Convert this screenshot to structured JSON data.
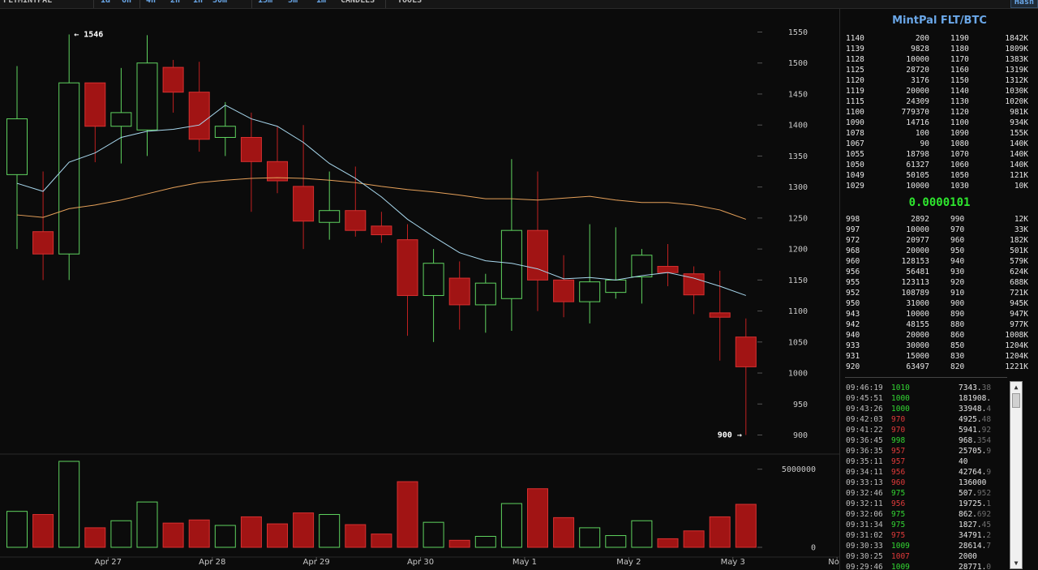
{
  "topbar": {
    "items": [
      {
        "label": "FLTMINTPAL",
        "blue": false
      },
      {
        "label": "1d",
        "blue": true
      },
      {
        "label": "6h",
        "blue": true
      },
      {
        "label": "4h",
        "blue": true
      },
      {
        "label": "2h",
        "blue": true
      },
      {
        "label": "1h",
        "blue": true
      },
      {
        "label": "30m",
        "blue": true
      },
      {
        "label": "15m",
        "blue": true
      },
      {
        "label": "5m",
        "blue": true
      },
      {
        "label": "1m",
        "blue": true
      },
      {
        "label": "CANDLES",
        "blue": false
      },
      {
        "label": "TOOLS",
        "blue": false
      }
    ],
    "hash_label": "Hash"
  },
  "chart_data": {
    "type": "candlestick",
    "price_axis": {
      "min": 900,
      "max": 1550,
      "ticks": [
        1550,
        1500,
        1450,
        1400,
        1350,
        1300,
        1250,
        1200,
        1150,
        1100,
        1050,
        1000,
        950,
        900
      ]
    },
    "volume_axis": {
      "ticks": [
        0,
        5000000
      ],
      "tick_labels": [
        "0",
        "5000000"
      ]
    },
    "x_labels": [
      {
        "label": "Apr 27",
        "at": 3.5
      },
      {
        "label": "Apr 28",
        "at": 7.5
      },
      {
        "label": "Apr 29",
        "at": 11.5
      },
      {
        "label": "Apr 30",
        "at": 15.5
      },
      {
        "label": "May 1",
        "at": 19.5
      },
      {
        "label": "May 2",
        "at": 23.5
      },
      {
        "label": "May 3",
        "at": 27.5
      },
      {
        "label": "Now",
        "at": 31.5
      }
    ],
    "annotations": {
      "high": "← 1546",
      "low": "900 →",
      "high_index": 2,
      "low_index": 28
    },
    "candles": [
      {
        "o": 1320,
        "h": 1495,
        "l": 1200,
        "c": 1410,
        "v": 2300000
      },
      {
        "o": 1228,
        "h": 1325,
        "l": 1150,
        "c": 1192,
        "v": 2100000
      },
      {
        "o": 1192,
        "h": 1546,
        "l": 1150,
        "c": 1468,
        "v": 5500000
      },
      {
        "o": 1468,
        "h": 1468,
        "l": 1340,
        "c": 1398,
        "v": 1250000
      },
      {
        "o": 1398,
        "h": 1492,
        "l": 1338,
        "c": 1420,
        "v": 1700000
      },
      {
        "o": 1392,
        "h": 1545,
        "l": 1350,
        "c": 1500,
        "v": 2900000
      },
      {
        "o": 1493,
        "h": 1505,
        "l": 1420,
        "c": 1453,
        "v": 1550000
      },
      {
        "o": 1453,
        "h": 1502,
        "l": 1357,
        "c": 1377,
        "v": 1750000
      },
      {
        "o": 1380,
        "h": 1437,
        "l": 1350,
        "c": 1398,
        "v": 1400000
      },
      {
        "o": 1380,
        "h": 1420,
        "l": 1260,
        "c": 1341,
        "v": 1950000
      },
      {
        "o": 1341,
        "h": 1397,
        "l": 1290,
        "c": 1310,
        "v": 1500000
      },
      {
        "o": 1301,
        "h": 1400,
        "l": 1200,
        "c": 1245,
        "v": 2200000
      },
      {
        "o": 1243,
        "h": 1325,
        "l": 1215,
        "c": 1262,
        "v": 2100000
      },
      {
        "o": 1262,
        "h": 1333,
        "l": 1220,
        "c": 1230,
        "v": 1450000
      },
      {
        "o": 1237,
        "h": 1260,
        "l": 1210,
        "c": 1223,
        "v": 850000
      },
      {
        "o": 1215,
        "h": 1240,
        "l": 1060,
        "c": 1125,
        "v": 4200000
      },
      {
        "o": 1125,
        "h": 1200,
        "l": 1050,
        "c": 1177,
        "v": 1600000
      },
      {
        "o": 1153,
        "h": 1180,
        "l": 1070,
        "c": 1110,
        "v": 450000
      },
      {
        "o": 1110,
        "h": 1160,
        "l": 1065,
        "c": 1145,
        "v": 700000
      },
      {
        "o": 1120,
        "h": 1345,
        "l": 1068,
        "c": 1230,
        "v": 2800000
      },
      {
        "o": 1230,
        "h": 1325,
        "l": 1100,
        "c": 1150,
        "v": 3750000
      },
      {
        "o": 1150,
        "h": 1190,
        "l": 1090,
        "c": 1115,
        "v": 1900000
      },
      {
        "o": 1115,
        "h": 1240,
        "l": 1080,
        "c": 1147,
        "v": 1250000
      },
      {
        "o": 1130,
        "h": 1235,
        "l": 1120,
        "c": 1150,
        "v": 750000
      },
      {
        "o": 1155,
        "h": 1200,
        "l": 1112,
        "c": 1190,
        "v": 1700000
      },
      {
        "o": 1172,
        "h": 1208,
        "l": 1140,
        "c": 1162,
        "v": 550000
      },
      {
        "o": 1160,
        "h": 1172,
        "l": 1095,
        "c": 1126,
        "v": 1050000
      },
      {
        "o": 1097,
        "h": 1165,
        "l": 1020,
        "c": 1090,
        "v": 1950000
      },
      {
        "o": 1058,
        "h": 1088,
        "l": 900,
        "c": 1010,
        "v": 2750000
      }
    ],
    "ma_short": [
      1306,
      1293,
      1340,
      1355,
      1380,
      1390,
      1393,
      1400,
      1432,
      1410,
      1398,
      1372,
      1338,
      1314,
      1284,
      1248,
      1220,
      1194,
      1181,
      1177,
      1168,
      1152,
      1154,
      1150,
      1157,
      1162,
      1153,
      1140,
      1125
    ],
    "ma_long": [
      1255,
      1251,
      1265,
      1271,
      1279,
      1289,
      1299,
      1307,
      1311,
      1314,
      1315,
      1314,
      1311,
      1307,
      1301,
      1296,
      1292,
      1287,
      1281,
      1281,
      1279,
      1282,
      1285,
      1279,
      1275,
      1275,
      1271,
      1263,
      1248
    ]
  },
  "sidebar": {
    "title": "MintPal FLT/BTC",
    "last_price": "0.0000101",
    "asks": [
      [
        "1140",
        "200",
        "1190",
        "1842K"
      ],
      [
        "1139",
        "9828",
        "1180",
        "1809K"
      ],
      [
        "1128",
        "10000",
        "1170",
        "1383K"
      ],
      [
        "1125",
        "28720",
        "1160",
        "1319K"
      ],
      [
        "1120",
        "3176",
        "1150",
        "1312K"
      ],
      [
        "1119",
        "20000",
        "1140",
        "1030K"
      ],
      [
        "1115",
        "24309",
        "1130",
        "1020K"
      ],
      [
        "1100",
        "779370",
        "1120",
        "981K"
      ],
      [
        "1090",
        "14716",
        "1100",
        "934K"
      ],
      [
        "1078",
        "100",
        "1090",
        "155K"
      ],
      [
        "1067",
        "90",
        "1080",
        "140K"
      ],
      [
        "1055",
        "18798",
        "1070",
        "140K"
      ],
      [
        "1050",
        "61327",
        "1060",
        "140K"
      ],
      [
        "1049",
        "50105",
        "1050",
        "121K"
      ],
      [
        "1029",
        "10000",
        "1030",
        "10K"
      ]
    ],
    "bids": [
      [
        "998",
        "2892",
        "990",
        "12K"
      ],
      [
        "997",
        "10000",
        "970",
        "33K"
      ],
      [
        "972",
        "20977",
        "960",
        "182K"
      ],
      [
        "968",
        "20000",
        "950",
        "501K"
      ],
      [
        "960",
        "128153",
        "940",
        "579K"
      ],
      [
        "956",
        "56481",
        "930",
        "624K"
      ],
      [
        "955",
        "123113",
        "920",
        "688K"
      ],
      [
        "952",
        "108789",
        "910",
        "721K"
      ],
      [
        "950",
        "31000",
        "900",
        "945K"
      ],
      [
        "943",
        "10000",
        "890",
        "947K"
      ],
      [
        "942",
        "48155",
        "880",
        "977K"
      ],
      [
        "940",
        "20000",
        "860",
        "1008K"
      ],
      [
        "933",
        "30000",
        "850",
        "1204K"
      ],
      [
        "931",
        "15000",
        "830",
        "1204K"
      ],
      [
        "920",
        "63497",
        "820",
        "1221K"
      ]
    ],
    "trades": [
      {
        "time": "09:46:19",
        "price": "1010",
        "dir": "up",
        "amt": "7343.",
        "amt_dim": "38"
      },
      {
        "time": "09:45:51",
        "price": "1000",
        "dir": "up",
        "amt": "181908.",
        "amt_dim": ""
      },
      {
        "time": "09:43:26",
        "price": "1000",
        "dir": "up",
        "amt": "33948.",
        "amt_dim": "4"
      },
      {
        "time": "09:42:03",
        "price": "970",
        "dir": "down",
        "amt": "4925.",
        "amt_dim": "48"
      },
      {
        "time": "09:41:22",
        "price": "970",
        "dir": "down",
        "amt": "5941.",
        "amt_dim": "92"
      },
      {
        "time": "09:36:45",
        "price": "998",
        "dir": "up",
        "amt": "968.",
        "amt_dim": "354"
      },
      {
        "time": "09:36:35",
        "price": "957",
        "dir": "down",
        "amt": "25705.",
        "amt_dim": "9"
      },
      {
        "time": "09:35:11",
        "price": "957",
        "dir": "down",
        "amt": "40",
        "amt_dim": ""
      },
      {
        "time": "09:34:11",
        "price": "956",
        "dir": "down",
        "amt": "42764.",
        "amt_dim": "9"
      },
      {
        "time": "09:33:13",
        "price": "960",
        "dir": "down",
        "amt": "136000",
        "amt_dim": ""
      },
      {
        "time": "09:32:46",
        "price": "975",
        "dir": "up",
        "amt": "507.",
        "amt_dim": "952"
      },
      {
        "time": "09:32:11",
        "price": "956",
        "dir": "down",
        "amt": "19725.",
        "amt_dim": "1"
      },
      {
        "time": "09:32:06",
        "price": "975",
        "dir": "up",
        "amt": "862.",
        "amt_dim": "692"
      },
      {
        "time": "09:31:34",
        "price": "975",
        "dir": "up",
        "amt": "1827.",
        "amt_dim": "45"
      },
      {
        "time": "09:31:02",
        "price": "975",
        "dir": "down",
        "amt": "34791.",
        "amt_dim": "2"
      },
      {
        "time": "09:30:33",
        "price": "1009",
        "dir": "up",
        "amt": "28614.",
        "amt_dim": "7"
      },
      {
        "time": "09:30:25",
        "price": "1007",
        "dir": "down",
        "amt": "2000",
        "amt_dim": ""
      },
      {
        "time": "09:29:46",
        "price": "1009",
        "dir": "up",
        "amt": "28771.",
        "amt_dim": "0"
      }
    ]
  },
  "colors": {
    "up": "#5fd35f",
    "down": "#a11414",
    "down_border": "#d83030",
    "ma_short": "#a8d8ee",
    "ma_long": "#e6a15a",
    "accent": "#6aa7e8",
    "last_price": "#2ee62e"
  }
}
